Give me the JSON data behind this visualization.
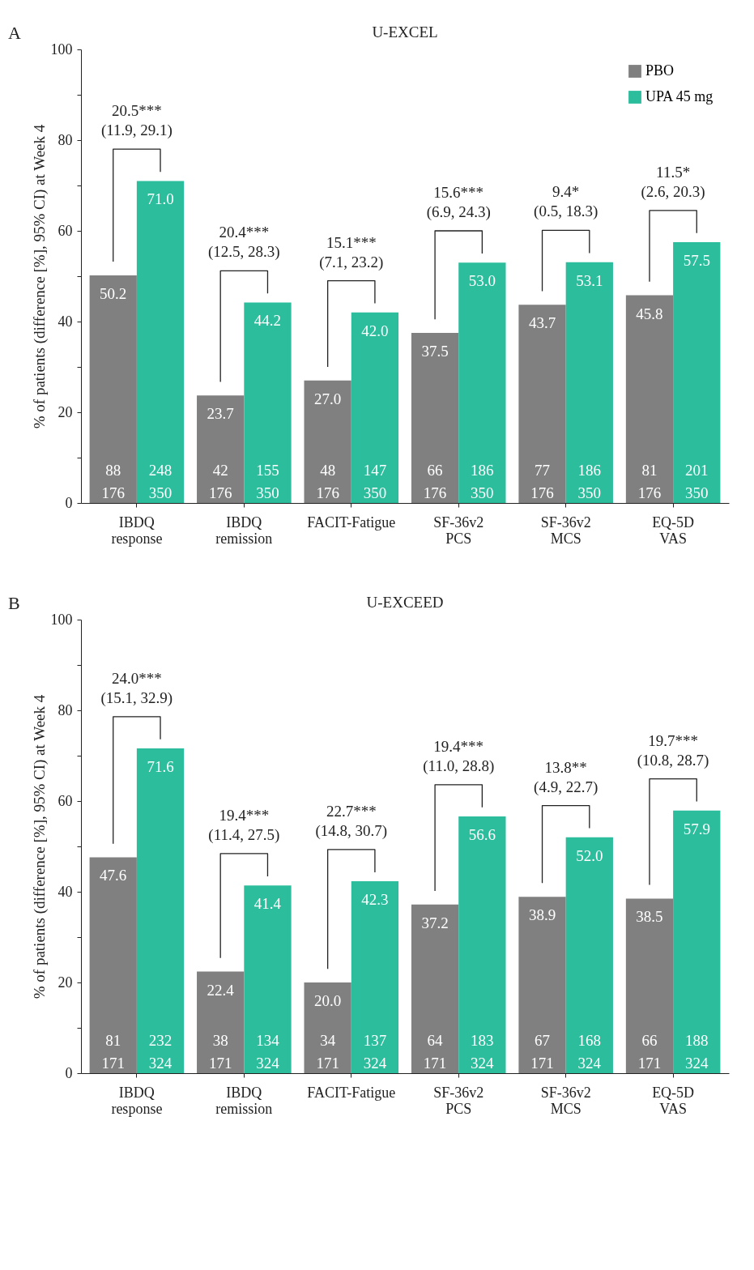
{
  "chart_data": [
    {
      "type": "bar",
      "title": "U-EXCEL",
      "ylabel": "% of patients (difference [%], 95% CI) at Week 4",
      "categories": [
        "IBDQ response",
        "IBDQ remission",
        "FACIT-Fatigue",
        "SF-36v2 PCS",
        "SF-36v2 MCS",
        "EQ-5D VAS"
      ],
      "series": [
        {
          "name": "PBO",
          "color": "#808080",
          "values": [
            50.2,
            23.7,
            27.0,
            37.5,
            43.7,
            45.8
          ],
          "value_labels": [
            "50.2",
            "23.7",
            "27.0",
            "37.5",
            "43.7",
            "45.8"
          ]
        },
        {
          "name": "UPA 45 mg",
          "color": "#2bbd9c",
          "values": [
            71.0,
            44.2,
            42.0,
            53.0,
            53.1,
            57.5
          ],
          "value_labels": [
            "71.0",
            "44.2",
            "42.0",
            "53.0",
            "53.1",
            "57.5"
          ]
        }
      ],
      "ylim": [
        0,
        100
      ],
      "yticks": [
        0,
        {
          "value": 10,
          "label": null
        },
        20,
        {
          "value": 30,
          "label": null
        },
        40,
        {
          "value": 50,
          "label": null
        },
        60,
        {
          "value": 70,
          "label": null
        },
        80,
        {
          "value": 90,
          "label": null
        },
        100
      ],
      "grid": false,
      "legend": "top right",
      "annotations": [
        "A",
        "88",
        "176",
        "248",
        "350",
        "42",
        "176",
        "155",
        "350",
        "48",
        "176",
        "147",
        "350",
        "66",
        "176",
        "186",
        "350",
        "77",
        "176",
        "186",
        "350",
        "81",
        "176",
        "201",
        "350",
        "20.5***\n(11.9, 29.1)",
        "20.4***\n(12.5, 28.3)",
        "15.1***\n(7.1, 23.2)",
        "15.6***\n(6.9, 24.3)",
        "9.4*\n(0.5, 18.3)",
        "11.5*\n(2.6, 20.3)"
      ]
    },
    {
      "type": "bar",
      "title": "U-EXCEED",
      "ylabel": "% of patients (difference [%], 95% CI) at Week 4",
      "categories": [
        "IBDQ response",
        "IBDQ remission",
        "FACIT-Fatigue",
        "SF-36v2 PCS",
        "SF-36v2 MCS",
        "EQ-5D VAS"
      ],
      "series": [
        {
          "name": "PBO",
          "color": "#808080",
          "values": [
            47.6,
            22.4,
            20.0,
            37.2,
            38.9,
            38.5
          ],
          "value_labels": [
            "47.6",
            "22.4",
            "20.0",
            "37.2",
            "38.9",
            "38.5"
          ]
        },
        {
          "name": "UPA 45 mg",
          "color": "#2bbd9c",
          "values": [
            71.6,
            41.4,
            42.3,
            56.6,
            52.0,
            57.9
          ],
          "value_labels": [
            "71.6",
            "41.4",
            "42.3",
            "56.6",
            "52.0",
            "57.9"
          ]
        }
      ],
      "ylim": [
        0,
        100
      ],
      "yticks": [
        0,
        {
          "value": 10,
          "label": null
        },
        20,
        {
          "value": 30,
          "label": null
        },
        40,
        {
          "value": 50,
          "label": null
        },
        60,
        {
          "value": 70,
          "label": null
        },
        80,
        {
          "value": 90,
          "label": null
        },
        100
      ],
      "grid": false,
      "legend": "top right",
      "annotations": [
        "B",
        "81",
        "171",
        "232",
        "324",
        "38",
        "171",
        "134",
        "324",
        "34",
        "171",
        "137",
        "324",
        "64",
        "171",
        "183",
        "324",
        "67",
        "171",
        "168",
        "324",
        "66",
        "171",
        "188",
        "324",
        "24.0***\n(15.1, 32.9)",
        "19.4***\n(11.4, 27.5)",
        "22.7***\n(14.8, 30.7)",
        "19.4***\n(11.0, 28.8)",
        "13.8**\n(4.9, 22.7)",
        "19.7***\n(10.8, 28.7)"
      ]
    }
  ]
}
